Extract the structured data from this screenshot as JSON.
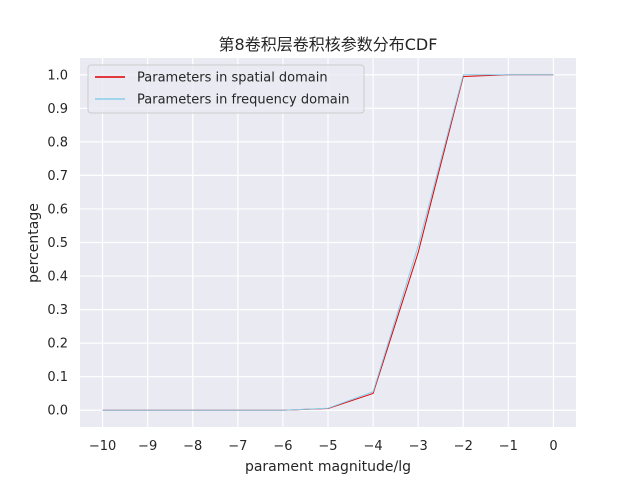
{
  "chart_data": {
    "type": "line",
    "title": "第8卷积层卷积核参数分布CDF",
    "xlabel": "parament magnitude/lg",
    "ylabel": "percentage",
    "x": [
      -10,
      -9,
      -8,
      -7,
      -6,
      -5,
      -4,
      -3,
      -2,
      -1,
      0
    ],
    "xlim": [
      -10.5,
      0.5
    ],
    "ylim": [
      -0.05,
      1.05
    ],
    "xticks": [
      -10,
      -9,
      -8,
      -7,
      -6,
      -5,
      -4,
      -3,
      -2,
      -1,
      0
    ],
    "xtick_labels": [
      "−10",
      "−9",
      "−8",
      "−7",
      "−6",
      "−5",
      "−4",
      "−3",
      "−2",
      "−1",
      "0"
    ],
    "yticks": [
      0.0,
      0.1,
      0.2,
      0.3,
      0.4,
      0.5,
      0.6,
      0.7,
      0.8,
      0.9,
      1.0
    ],
    "ytick_labels": [
      "0.0",
      "0.1",
      "0.2",
      "0.3",
      "0.4",
      "0.5",
      "0.6",
      "0.7",
      "0.8",
      "0.9",
      "1.0"
    ],
    "grid": true,
    "legend_position": "top-left",
    "series": [
      {
        "name": "Parameters in spatial domain",
        "color": "#e00000",
        "values": [
          0.0,
          0.0,
          0.0,
          0.0,
          0.0,
          0.005,
          0.05,
          0.47,
          0.995,
          1.0,
          1.0
        ]
      },
      {
        "name": "Parameters in frequency domain",
        "color": "#87ceeb",
        "values": [
          0.0,
          0.0,
          0.0,
          0.0,
          0.0,
          0.006,
          0.055,
          0.49,
          1.0,
          1.0,
          1.0
        ]
      }
    ]
  }
}
